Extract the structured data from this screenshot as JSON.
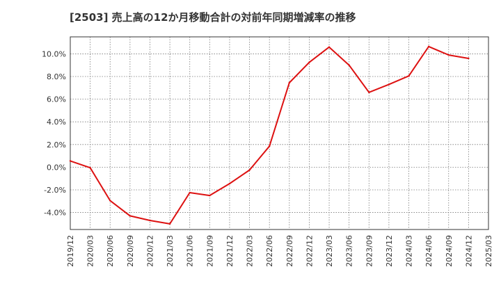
{
  "chart_data": {
    "type": "line",
    "title": "[2503]  売上高の12か月移動合計の対前年同期増減率の推移",
    "xlabel": "",
    "ylabel": "",
    "x_ticks": [
      "2019/12",
      "2020/03",
      "2020/06",
      "2020/09",
      "2020/12",
      "2021/03",
      "2021/06",
      "2021/09",
      "2021/12",
      "2022/03",
      "2022/06",
      "2022/09",
      "2022/12",
      "2023/03",
      "2023/06",
      "2023/09",
      "2023/12",
      "2024/03",
      "2024/06",
      "2024/09",
      "2024/12",
      "2025/03"
    ],
    "y_ticks": [
      -4.0,
      -2.0,
      0.0,
      2.0,
      4.0,
      6.0,
      8.0,
      10.0
    ],
    "y_tick_labels": [
      "-4.0%",
      "-2.0%",
      "0.0%",
      "2.0%",
      "4.0%",
      "6.0%",
      "8.0%",
      "10.0%"
    ],
    "ylim": [
      -5.5,
      11.5
    ],
    "grid": true,
    "series": [
      {
        "name": "対前年同期増減率",
        "color": "#dd1111",
        "x": [
          "2019/12",
          "2020/03",
          "2020/06",
          "2020/09",
          "2020/12",
          "2021/03",
          "2021/06",
          "2021/09",
          "2021/12",
          "2022/03",
          "2022/06",
          "2022/09",
          "2022/12",
          "2023/03",
          "2023/06",
          "2023/09",
          "2023/12",
          "2024/03",
          "2024/06",
          "2024/09",
          "2024/12"
        ],
        "values": [
          0.55,
          -0.05,
          -2.95,
          -4.3,
          -4.7,
          -5.0,
          -2.25,
          -2.5,
          -1.45,
          -0.25,
          1.85,
          7.45,
          9.25,
          10.6,
          9.0,
          6.6,
          7.3,
          8.05,
          10.65,
          9.9,
          9.6
        ]
      }
    ]
  }
}
